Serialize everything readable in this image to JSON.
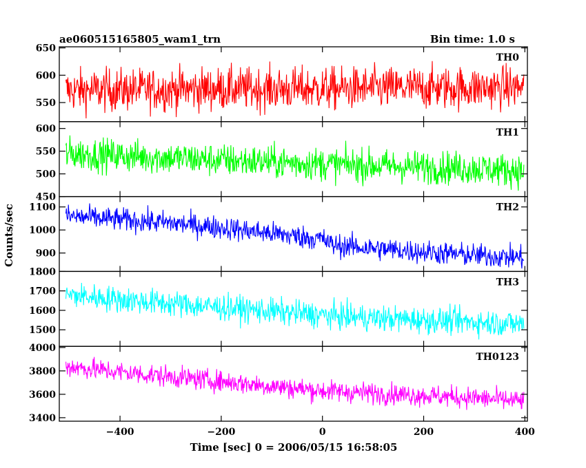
{
  "chart_data": {
    "type": "line",
    "title_left": "ae060515165805_wam1_trn",
    "title_right": "Bin time: 1.0 s",
    "xlabel": "Time [sec] 0 = 2006/05/15 16:58:05",
    "ylabel": "Counts/sec",
    "xlim": [
      -520,
      405
    ],
    "x_ticks": [
      -400,
      -200,
      0,
      200,
      400
    ],
    "x_tick_labels": [
      "−400",
      "−200",
      "0",
      "200",
      "400"
    ],
    "panels": [
      {
        "name": "TH0",
        "color": "#ff0000",
        "ylim": [
          515,
          652
        ],
        "y_ticks": [
          550,
          600,
          650
        ],
        "y_tick_labels": [
          "550",
          "600",
          "650"
        ],
        "x_range": [
          -507,
          398
        ],
        "x": [
          -507,
          -400,
          -300,
          -200,
          -100,
          0,
          100,
          200,
          300,
          398
        ],
        "y": [
          572,
          573,
          574,
          575,
          575,
          575,
          576,
          577,
          577,
          578
        ],
        "noise": 28
      },
      {
        "name": "TH1",
        "color": "#00ff00",
        "ylim": [
          450,
          615
        ],
        "y_ticks": [
          450,
          500,
          550,
          600
        ],
        "y_tick_labels": [
          "450",
          "500",
          "550",
          "600"
        ],
        "x_range": [
          -507,
          398
        ],
        "x": [
          -507,
          -400,
          -300,
          -200,
          -100,
          0,
          100,
          200,
          300,
          398
        ],
        "y": [
          545,
          540,
          535,
          530,
          526,
          522,
          518,
          515,
          512,
          507
        ],
        "noise": 26
      },
      {
        "name": "TH2",
        "color": "#0000ff",
        "ylim": [
          820,
          1145
        ],
        "y_ticks": [
          900,
          1000,
          1100
        ],
        "y_tick_labels": [
          "900",
          "1000",
          "1100"
        ],
        "x_range": [
          -507,
          398
        ],
        "x": [
          -507,
          -400,
          -300,
          -200,
          -100,
          0,
          20,
          100,
          200,
          300,
          398
        ],
        "y": [
          1060,
          1045,
          1030,
          1010,
          985,
          960,
          935,
          920,
          905,
          890,
          880
        ],
        "noise": 36
      },
      {
        "name": "TH3",
        "color": "#00ffff",
        "ylim": [
          1415,
          1800
        ],
        "y_ticks": [
          1500,
          1600,
          1700,
          1800
        ],
        "y_tick_labels": [
          "1500",
          "1600",
          "1700",
          "1800"
        ],
        "x_range": [
          -507,
          398
        ],
        "x": [
          -507,
          -400,
          -300,
          -200,
          -100,
          0,
          100,
          200,
          300,
          398
        ],
        "y": [
          1680,
          1655,
          1635,
          1615,
          1595,
          1575,
          1560,
          1550,
          1540,
          1530
        ],
        "noise": 48
      },
      {
        "name": "TH0123",
        "color": "#ff00ff",
        "ylim": [
          3370,
          4010
        ],
        "y_ticks": [
          3400,
          3600,
          3800,
          4000
        ],
        "y_tick_labels": [
          "3400",
          "3600",
          "3800",
          "4000"
        ],
        "x_range": [
          -507,
          398
        ],
        "x": [
          -507,
          -400,
          -300,
          -200,
          -100,
          0,
          100,
          200,
          300,
          398
        ],
        "y": [
          3840,
          3790,
          3750,
          3710,
          3670,
          3630,
          3610,
          3590,
          3570,
          3540
        ],
        "noise": 65
      }
    ]
  }
}
